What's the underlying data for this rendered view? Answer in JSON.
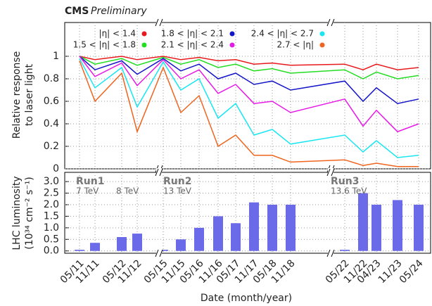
{
  "chart_data": [
    {
      "type": "line",
      "title": "CMS",
      "subtitle": "Preliminary",
      "ylabel": [
        "Relative response",
        "to laser light"
      ],
      "ylim": [
        0,
        1.3
      ],
      "yticks": [
        0,
        0.2,
        0.4,
        0.6,
        0.8,
        1
      ],
      "grid": true,
      "series": [
        {
          "name": "|η| < 1.4",
          "color": "#e8191c",
          "values": [
            1,
            0.97,
            1,
            0.97,
            1,
            0.97,
            0.99,
            0.96,
            0.97,
            0.93,
            0.94,
            0.92,
            0.93,
            0.88,
            0.93,
            0.88,
            0.9
          ]
        },
        {
          "name": "1.5 < |η| < 1.8",
          "color": "#22dd22",
          "values": [
            1,
            0.93,
            0.98,
            0.92,
            0.99,
            0.93,
            0.97,
            0.9,
            0.93,
            0.87,
            0.89,
            0.85,
            0.88,
            0.8,
            0.86,
            0.8,
            0.83
          ]
        },
        {
          "name": "1.8 < |η| < 2.1",
          "color": "#1414c8",
          "values": [
            1,
            0.88,
            0.96,
            0.84,
            0.98,
            0.87,
            0.93,
            0.8,
            0.85,
            0.75,
            0.78,
            0.7,
            0.78,
            0.6,
            0.72,
            0.58,
            0.62
          ]
        },
        {
          "name": "2.1 < |η| < 2.4",
          "color": "#e619e6",
          "values": [
            1,
            0.82,
            0.94,
            0.74,
            0.97,
            0.8,
            0.88,
            0.67,
            0.75,
            0.58,
            0.6,
            0.5,
            0.62,
            0.38,
            0.52,
            0.33,
            0.4
          ]
        },
        {
          "name": "2.4 < |η| < 2.7",
          "color": "#19e6f0",
          "values": [
            0.98,
            0.72,
            0.9,
            0.55,
            0.95,
            0.7,
            0.8,
            0.45,
            0.58,
            0.3,
            0.35,
            0.22,
            0.3,
            0.15,
            0.25,
            0.1,
            0.12
          ]
        },
        {
          "name": "2.7 < |η|",
          "color": "#f0641e",
          "values": [
            0.96,
            0.6,
            0.85,
            0.33,
            0.9,
            0.5,
            0.65,
            0.2,
            0.3,
            0.12,
            0.12,
            0.06,
            0.08,
            0.03,
            0.05,
            0.02,
            0.02
          ]
        }
      ]
    },
    {
      "type": "bar",
      "ylabel": [
        "LHC luminosity",
        "(10³⁴ cm⁻² s⁻¹)"
      ],
      "xlabel": "Date (month/year)",
      "categories": [
        "05/11",
        "11/11",
        "05/12",
        "11/12",
        "05/15",
        "11/15",
        "05/16",
        "11/16",
        "05/17",
        "11/17",
        "05/18",
        "11/18",
        "05/22",
        "11/22",
        "04/23",
        "11/23",
        "05/24"
      ],
      "values": [
        0.05,
        0.35,
        0.6,
        0.75,
        0.05,
        0.5,
        1.0,
        1.5,
        1.2,
        2.1,
        2.0,
        2.0,
        0.05,
        2.5,
        2.0,
        2.2,
        2.0
      ],
      "color": "#6b6bea",
      "ylim": [
        -0.1,
        3.4
      ],
      "yticks": [
        {
          "value": 0,
          "label": "0.0"
        },
        {
          "value": 0.5,
          "label": "0.5"
        },
        {
          "value": 1,
          "label": "1.0"
        },
        {
          "value": 1.5,
          "label": "1.5"
        },
        {
          "value": 2,
          "label": "2.0"
        },
        {
          "value": 2.5,
          "label": "2.5"
        },
        {
          "value": 3,
          "label": "3.0"
        }
      ],
      "grid": true,
      "annotations": [
        "Run1",
        "7 TeV",
        "8 TeV",
        "Run2",
        "13 TeV",
        "Run3",
        "13.6 TeV"
      ]
    }
  ]
}
